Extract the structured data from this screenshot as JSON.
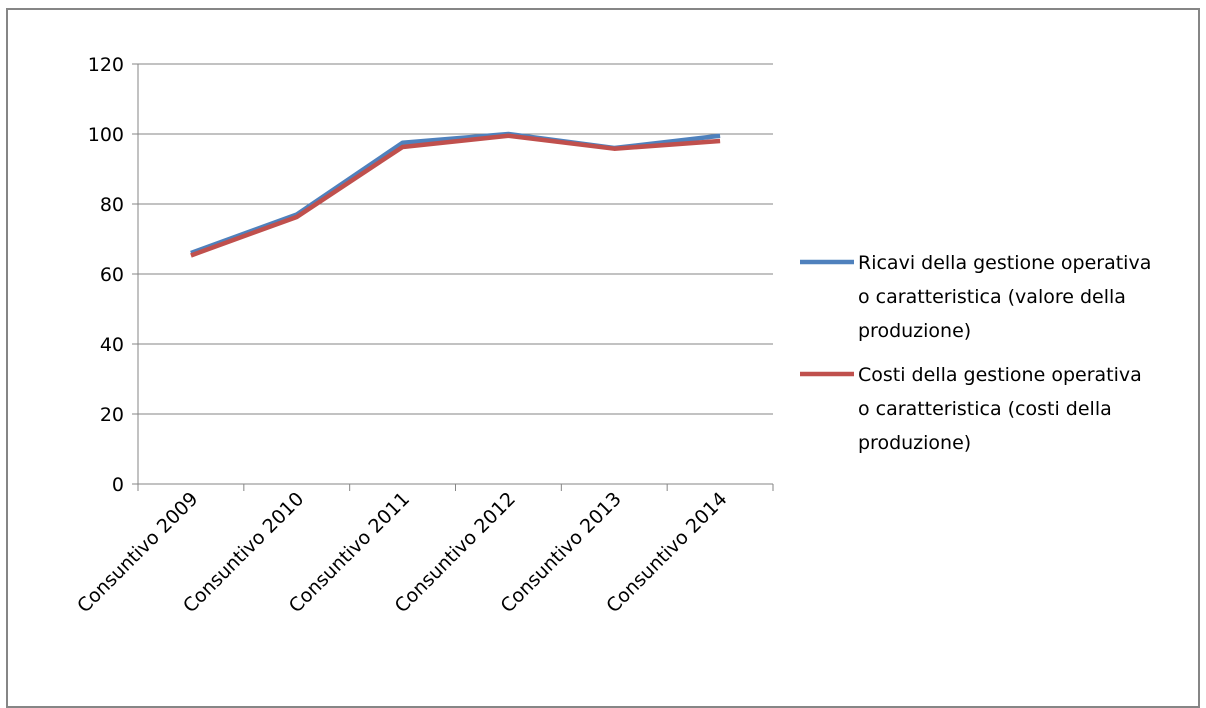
{
  "chart_data": {
    "type": "line",
    "title": "",
    "xlabel": "",
    "ylabel": "",
    "categories": [
      "Consuntivo 2009",
      "Consuntivo 2010",
      "Consuntivo 2011",
      "Consuntivo 2012",
      "Consuntivo 2013",
      "Consuntivo 2014"
    ],
    "ylim": [
      0,
      120
    ],
    "yticks": [
      0,
      20,
      40,
      60,
      80,
      100,
      120
    ],
    "grid": true,
    "legend_position": "right",
    "series": [
      {
        "name": "Ricavi della gestione operativa o caratteristica (valore della produzione)",
        "legend_lines": [
          "Ricavi della gestione operativa",
          "o caratteristica (valore della",
          "produzione)"
        ],
        "color": "#4F81BD",
        "values": [
          66,
          77,
          97.5,
          100,
          96,
          99.5
        ]
      },
      {
        "name": "Costi della gestione operativa o caratteristica (costi della produzione)",
        "legend_lines": [
          "Costi della gestione operativa",
          "o caratteristica (costi della",
          "produzione)"
        ],
        "color": "#C0504D",
        "values": [
          65.3,
          76.3,
          96.3,
          99.5,
          95.8,
          98
        ]
      }
    ]
  }
}
